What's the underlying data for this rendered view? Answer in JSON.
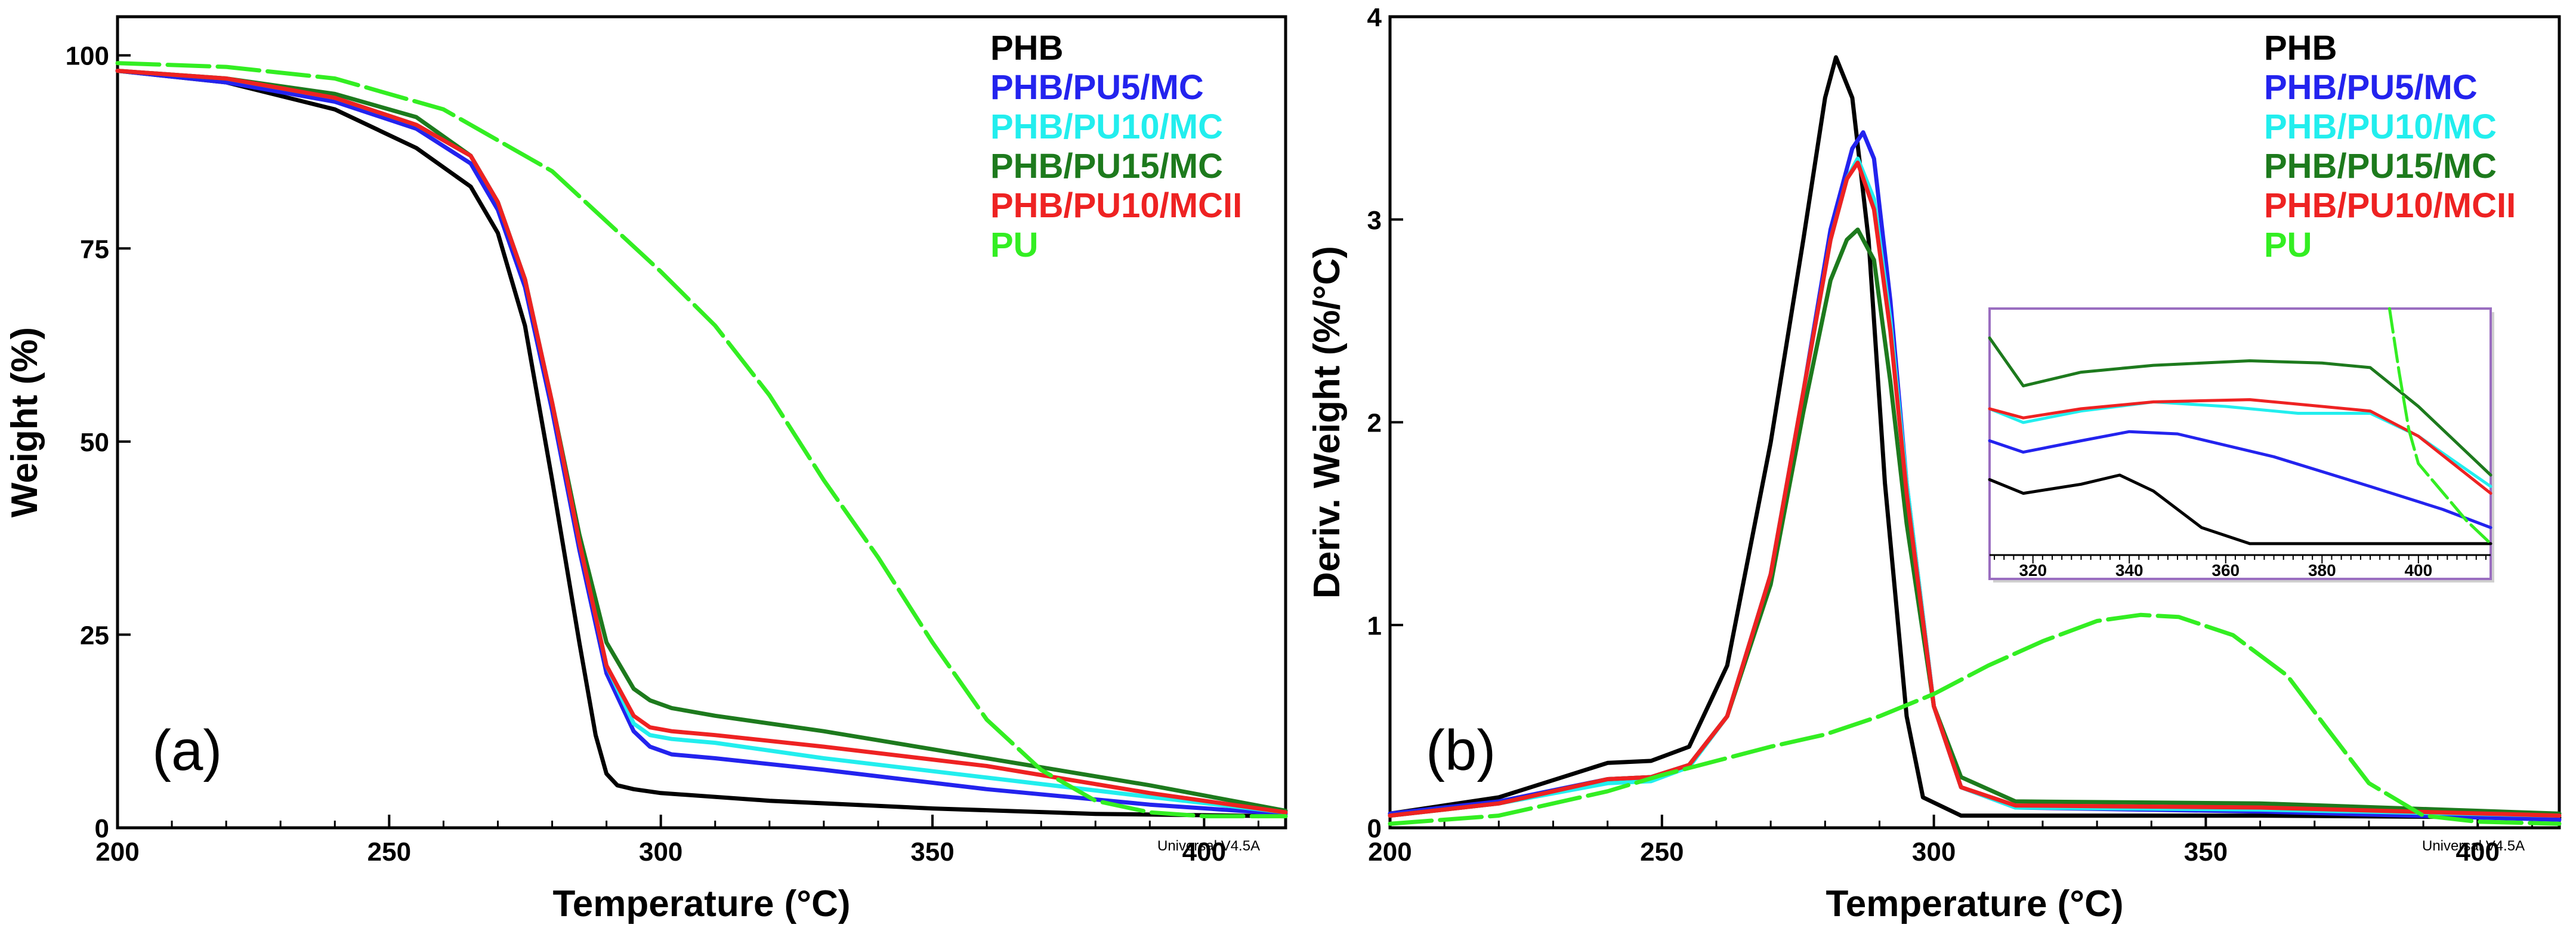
{
  "figure": {
    "software_label": "Universal V4.5A"
  },
  "colors": {
    "PHB": "#000000",
    "PHB/PU5/MC": "#2323ee",
    "PHB/PU10/MC": "#22eeee",
    "PHB/PU15/MC": "#1d7a1d",
    "PHB/PU10/MCII": "#ee2222",
    "PU": "#33ee22",
    "inset_border": "#9a6ec0"
  },
  "chart_data": [
    {
      "type": "line",
      "panel_label": "(a)",
      "xlabel": "Temperature (°C)",
      "ylabel": "Weight (%)",
      "xlim": [
        200,
        415
      ],
      "ylim": [
        0,
        105
      ],
      "xticks": [
        200,
        250,
        300,
        350,
        400
      ],
      "yticks": [
        0,
        25,
        50,
        75,
        100
      ],
      "legend": [
        "PHB",
        "PHB/PU5/MC",
        "PHB/PU10/MC",
        "PHB/PU15/MC",
        "PHB/PU10/MCII",
        "PU"
      ],
      "legend_position": "top-right",
      "series": [
        {
          "name": "PHB",
          "x": [
            200,
            220,
            240,
            255,
            265,
            270,
            275,
            280,
            285,
            288,
            290,
            292,
            295,
            300,
            320,
            350,
            380,
            415
          ],
          "y": [
            98,
            96.5,
            93,
            88,
            83,
            77,
            65,
            45,
            24,
            12,
            7,
            5.5,
            5,
            4.5,
            3.5,
            2.5,
            1.8,
            1.5
          ]
        },
        {
          "name": "PHB/PU5/MC",
          "x": [
            200,
            220,
            240,
            255,
            265,
            270,
            275,
            280,
            285,
            290,
            295,
            298,
            302,
            310,
            330,
            360,
            390,
            415
          ],
          "y": [
            98,
            96.5,
            94,
            90.5,
            86,
            80,
            70,
            54,
            36,
            20,
            12.5,
            10.5,
            9.5,
            9,
            7.5,
            5,
            3,
            1.8
          ]
        },
        {
          "name": "PHB/PU10/MC",
          "x": [
            200,
            220,
            240,
            255,
            265,
            270,
            275,
            280,
            285,
            290,
            295,
            298,
            302,
            310,
            330,
            360,
            390,
            415
          ],
          "y": [
            98,
            97,
            94.5,
            91,
            87,
            81,
            71,
            55,
            37,
            21,
            13.5,
            12,
            11.5,
            11,
            9,
            6.5,
            4,
            2
          ]
        },
        {
          "name": "PHB/PU15/MC",
          "x": [
            200,
            220,
            240,
            255,
            265,
            270,
            275,
            280,
            285,
            290,
            295,
            298,
            302,
            310,
            330,
            360,
            390,
            415
          ],
          "y": [
            98,
            97,
            95,
            92,
            87,
            81,
            71,
            55,
            38,
            24,
            18,
            16.5,
            15.5,
            14.5,
            12.5,
            9,
            5.5,
            2.2
          ]
        },
        {
          "name": "PHB/PU10/MCII",
          "x": [
            200,
            220,
            240,
            255,
            265,
            270,
            275,
            280,
            285,
            290,
            295,
            298,
            302,
            310,
            330,
            360,
            390,
            415
          ],
          "y": [
            98,
            97,
            94.5,
            91,
            87,
            81,
            71,
            55,
            37,
            21,
            14.5,
            13,
            12.5,
            12,
            10.5,
            8,
            4.5,
            2
          ]
        },
        {
          "name": "PU",
          "x": [
            200,
            220,
            240,
            260,
            280,
            300,
            310,
            320,
            330,
            340,
            350,
            360,
            370,
            380,
            390,
            400,
            415
          ],
          "y": [
            99,
            98.5,
            97,
            93,
            85,
            72,
            65,
            56,
            45,
            35,
            24,
            14,
            7.5,
            3.5,
            2,
            1.5,
            1.5
          ]
        }
      ]
    },
    {
      "type": "line",
      "panel_label": "(b)",
      "xlabel": "Temperature (°C)",
      "ylabel": "Deriv. Weight (%/°C)",
      "xlim": [
        200,
        415
      ],
      "ylim": [
        0,
        4
      ],
      "xticks": [
        200,
        250,
        300,
        350,
        400
      ],
      "yticks": [
        0,
        1,
        2,
        3,
        4
      ],
      "legend": [
        "PHB",
        "PHB/PU5/MC",
        "PHB/PU10/MC",
        "PHB/PU15/MC",
        "PHB/PU10/MCII",
        "PU"
      ],
      "legend_position": "top-right",
      "series": [
        {
          "name": "PHB",
          "x": [
            200,
            220,
            240,
            248,
            255,
            262,
            270,
            276,
            280,
            282,
            285,
            288,
            291,
            295,
            298,
            305,
            320,
            360,
            415
          ],
          "y": [
            0.07,
            0.15,
            0.32,
            0.33,
            0.4,
            0.8,
            1.9,
            2.9,
            3.6,
            3.8,
            3.6,
            2.9,
            1.7,
            0.55,
            0.15,
            0.06,
            0.06,
            0.06,
            0.05
          ]
        },
        {
          "name": "PHB/PU5/MC",
          "x": [
            200,
            220,
            240,
            248,
            255,
            262,
            270,
            276,
            281,
            285,
            287,
            289,
            292,
            295,
            300,
            305,
            315,
            360,
            415
          ],
          "y": [
            0.07,
            0.13,
            0.24,
            0.25,
            0.31,
            0.55,
            1.25,
            2.15,
            2.95,
            3.35,
            3.43,
            3.3,
            2.6,
            1.7,
            0.6,
            0.2,
            0.1,
            0.08,
            0.04
          ]
        },
        {
          "name": "PHB/PU10/MC",
          "x": [
            200,
            220,
            240,
            248,
            255,
            262,
            270,
            276,
            281,
            284,
            286,
            289,
            292,
            295,
            300,
            305,
            315,
            360,
            415
          ],
          "y": [
            0.06,
            0.12,
            0.22,
            0.23,
            0.3,
            0.55,
            1.25,
            2.15,
            2.9,
            3.2,
            3.3,
            3.1,
            2.5,
            1.7,
            0.6,
            0.2,
            0.1,
            0.09,
            0.06
          ]
        },
        {
          "name": "PHB/PU15/MC",
          "x": [
            200,
            220,
            240,
            248,
            255,
            262,
            270,
            276,
            281,
            284,
            286,
            289,
            292,
            295,
            300,
            305,
            315,
            360,
            415
          ],
          "y": [
            0.06,
            0.12,
            0.24,
            0.25,
            0.31,
            0.55,
            1.2,
            2.05,
            2.7,
            2.9,
            2.95,
            2.8,
            2.2,
            1.5,
            0.6,
            0.25,
            0.13,
            0.12,
            0.07
          ]
        },
        {
          "name": "PHB/PU10/MCII",
          "x": [
            200,
            220,
            240,
            248,
            255,
            262,
            270,
            276,
            281,
            284,
            286,
            289,
            292,
            295,
            300,
            305,
            315,
            360,
            415
          ],
          "y": [
            0.06,
            0.12,
            0.24,
            0.25,
            0.31,
            0.55,
            1.25,
            2.15,
            2.9,
            3.2,
            3.28,
            3.05,
            2.45,
            1.65,
            0.6,
            0.2,
            0.11,
            0.1,
            0.06
          ]
        },
        {
          "name": "PU",
          "x": [
            200,
            220,
            240,
            250,
            260,
            270,
            280,
            290,
            300,
            310,
            320,
            330,
            338,
            345,
            355,
            365,
            372,
            380,
            390,
            400,
            415
          ],
          "y": [
            0.02,
            0.06,
            0.18,
            0.26,
            0.33,
            0.4,
            0.46,
            0.55,
            0.66,
            0.8,
            0.92,
            1.02,
            1.05,
            1.04,
            0.95,
            0.75,
            0.5,
            0.22,
            0.06,
            0.03,
            0.02
          ]
        }
      ],
      "inset": {
        "xlim": [
          311,
          415
        ],
        "xticks": [
          320,
          340,
          360,
          380,
          400
        ],
        "ylim": [
          0,
          1
        ],
        "note": "zoomed view of the 310-415 °C region of panel (b)",
        "series": [
          {
            "name": "PHB",
            "x": [
              311,
              318,
              330,
              338,
              345,
              355,
              365,
              380,
              415
            ],
            "y": [
              0.33,
              0.27,
              0.31,
              0.35,
              0.28,
              0.12,
              0.05,
              0.05,
              0.05
            ]
          },
          {
            "name": "PHB/PU5/MC",
            "x": [
              311,
              318,
              330,
              340,
              350,
              370,
              390,
              405,
              415
            ],
            "y": [
              0.5,
              0.45,
              0.5,
              0.54,
              0.53,
              0.43,
              0.3,
              0.2,
              0.12
            ]
          },
          {
            "name": "PHB/PU10/MC",
            "x": [
              311,
              318,
              330,
              345,
              360,
              375,
              390,
              400,
              415
            ],
            "y": [
              0.64,
              0.58,
              0.63,
              0.67,
              0.65,
              0.62,
              0.62,
              0.52,
              0.3
            ]
          },
          {
            "name": "PHB/PU15/MC",
            "x": [
              311,
              318,
              330,
              345,
              365,
              380,
              390,
              400,
              415
            ],
            "y": [
              0.95,
              0.74,
              0.8,
              0.83,
              0.85,
              0.84,
              0.82,
              0.65,
              0.35
            ]
          },
          {
            "name": "PHB/PU10/MCII",
            "x": [
              311,
              318,
              330,
              345,
              365,
              380,
              390,
              400,
              415
            ],
            "y": [
              0.64,
              0.6,
              0.64,
              0.67,
              0.68,
              0.65,
              0.63,
              0.52,
              0.27
            ]
          },
          {
            "name": "PU",
            "x": [
              394,
              396,
              398,
              400,
              404,
              410,
              415
            ],
            "y": [
              1.2,
              0.8,
              0.55,
              0.4,
              0.3,
              0.15,
              0.05
            ]
          }
        ]
      }
    }
  ]
}
